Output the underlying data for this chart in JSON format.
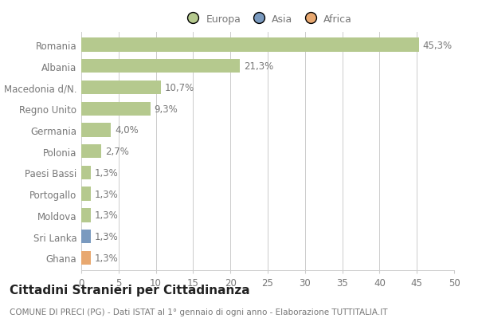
{
  "categories": [
    "Romania",
    "Albania",
    "Macedonia d/N.",
    "Regno Unito",
    "Germania",
    "Polonia",
    "Paesi Bassi",
    "Portogallo",
    "Moldova",
    "Sri Lanka",
    "Ghana"
  ],
  "values": [
    45.3,
    21.3,
    10.7,
    9.3,
    4.0,
    2.7,
    1.3,
    1.3,
    1.3,
    1.3,
    1.3
  ],
  "labels": [
    "45,3%",
    "21,3%",
    "10,7%",
    "9,3%",
    "4,0%",
    "2,7%",
    "1,3%",
    "1,3%",
    "1,3%",
    "1,3%",
    "1,3%"
  ],
  "colors": [
    "#b5c98e",
    "#b5c98e",
    "#b5c98e",
    "#b5c98e",
    "#b5c98e",
    "#b5c98e",
    "#b5c98e",
    "#b5c98e",
    "#b5c98e",
    "#7a9abf",
    "#e8a870"
  ],
  "legend_labels": [
    "Europa",
    "Asia",
    "Africa"
  ],
  "legend_colors": [
    "#b5c98e",
    "#7a9abf",
    "#e8a870"
  ],
  "title": "Cittadini Stranieri per Cittadinanza",
  "subtitle": "COMUNE DI PRECI (PG) - Dati ISTAT al 1° gennaio di ogni anno - Elaborazione TUTTITALIA.IT",
  "xlim": [
    0,
    50
  ],
  "xticks": [
    0,
    5,
    10,
    15,
    20,
    25,
    30,
    35,
    40,
    45,
    50
  ],
  "bg_color": "#ffffff",
  "grid_color": "#cccccc",
  "bar_height": 0.65,
  "label_fontsize": 8.5,
  "title_fontsize": 11,
  "subtitle_fontsize": 7.5,
  "tick_fontsize": 8.5,
  "text_color": "#777777",
  "title_color": "#222222"
}
